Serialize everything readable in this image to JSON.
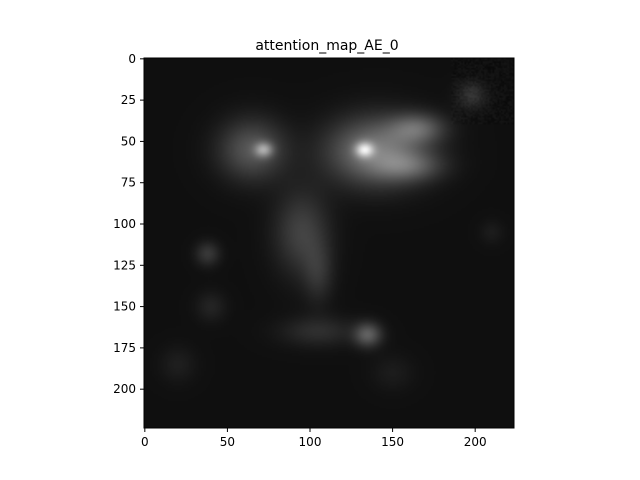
{
  "chart_data": {
    "type": "heatmap",
    "title": "attention_map_AE_0",
    "xlabel": "",
    "ylabel": "",
    "colormap": "gray",
    "xlim": [
      -0.5,
      223.5
    ],
    "ylim": [
      223.5,
      -0.5
    ],
    "xticks": [
      0,
      50,
      100,
      150,
      200
    ],
    "yticks": [
      0,
      25,
      50,
      75,
      100,
      125,
      150,
      175,
      200
    ],
    "xtick_labels": [
      "0",
      "50",
      "100",
      "150",
      "200"
    ],
    "ytick_labels": [
      "0",
      "25",
      "50",
      "75",
      "100",
      "125",
      "150",
      "175",
      "200"
    ],
    "background_intensity": 0.06,
    "blobs": [
      {
        "region": "upper-center-right patch",
        "x": 140,
        "y": 56,
        "rx": 32,
        "ry": 22,
        "intensity": 0.42
      },
      {
        "region": "upper-right patch",
        "x": 165,
        "y": 42,
        "rx": 18,
        "ry": 10,
        "intensity": 0.28
      },
      {
        "region": "upper-right patch",
        "x": 160,
        "y": 65,
        "rx": 22,
        "ry": 10,
        "intensity": 0.22
      },
      {
        "region": "peak",
        "x": 133,
        "y": 55,
        "rx": 6,
        "ry": 5,
        "intensity": 0.5
      },
      {
        "region": "upper-left patch",
        "x": 65,
        "y": 55,
        "rx": 22,
        "ry": 20,
        "intensity": 0.28
      },
      {
        "region": "peak",
        "x": 72,
        "y": 55,
        "rx": 6,
        "ry": 5,
        "intensity": 0.38
      },
      {
        "region": "central column",
        "x": 95,
        "y": 105,
        "rx": 18,
        "ry": 28,
        "intensity": 0.2
      },
      {
        "region": "central column",
        "x": 105,
        "y": 130,
        "rx": 10,
        "ry": 20,
        "intensity": 0.12
      },
      {
        "region": "mid-left spot",
        "x": 38,
        "y": 118,
        "rx": 8,
        "ry": 8,
        "intensity": 0.16
      },
      {
        "region": "lower band",
        "x": 105,
        "y": 165,
        "rx": 25,
        "ry": 10,
        "intensity": 0.12
      },
      {
        "region": "lower spot",
        "x": 135,
        "y": 167,
        "rx": 9,
        "ry": 8,
        "intensity": 0.3
      },
      {
        "region": "left band",
        "x": 40,
        "y": 150,
        "rx": 10,
        "ry": 10,
        "intensity": 0.08
      },
      {
        "region": "bottom-left",
        "x": 20,
        "y": 185,
        "rx": 12,
        "ry": 12,
        "intensity": 0.06
      },
      {
        "region": "top-right corner",
        "x": 198,
        "y": 22,
        "rx": 10,
        "ry": 9,
        "intensity": 0.14
      },
      {
        "region": "right spot",
        "x": 210,
        "y": 105,
        "rx": 8,
        "ry": 8,
        "intensity": 0.05
      },
      {
        "region": "lower right",
        "x": 150,
        "y": 190,
        "rx": 14,
        "ry": 12,
        "intensity": 0.05
      }
    ]
  }
}
